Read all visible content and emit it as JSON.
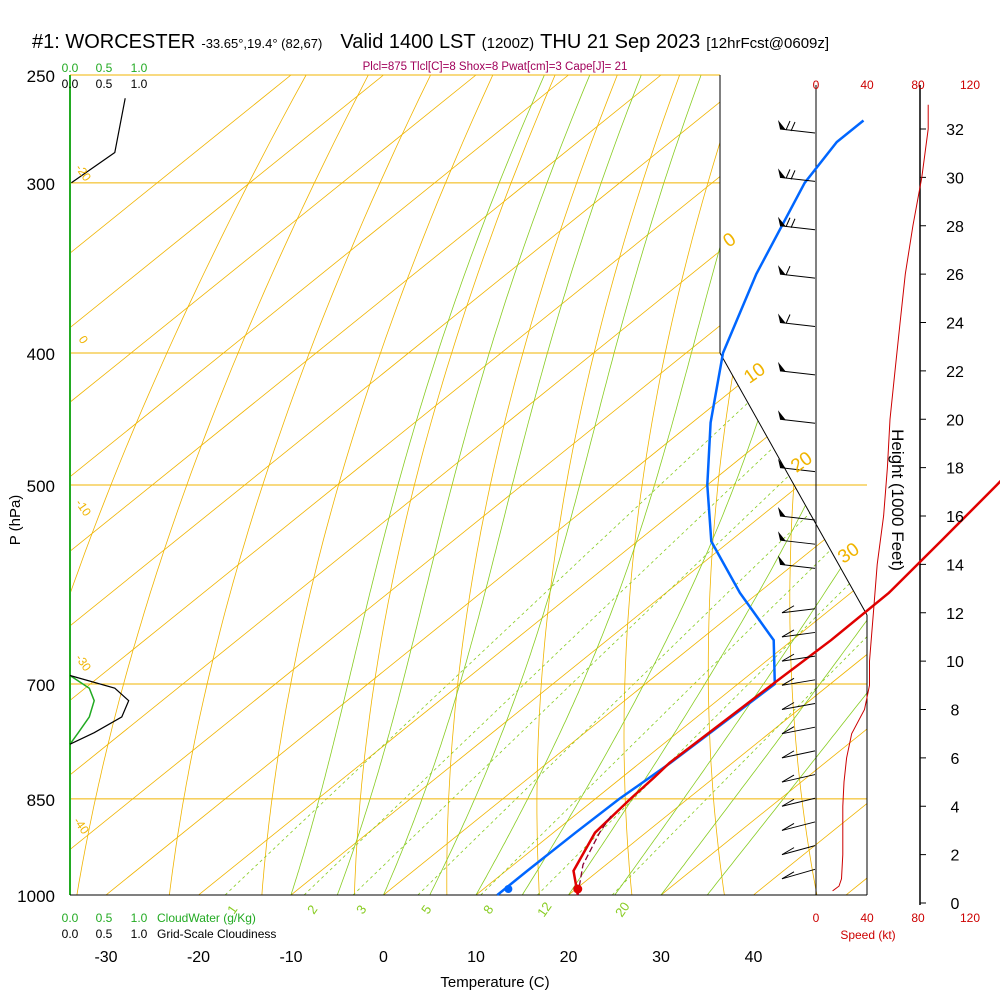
{
  "header": {
    "station": "#1: WORCESTER",
    "coords": "-33.65°,19.4° (82,67)",
    "valid": "Valid 1400 LST",
    "utc": "(1200Z)",
    "date": "THU 21 Sep 2023",
    "forecast": "[12hrFcst@0609z]",
    "indices": "Plcl=875 Tlcl[C]=8 Shox=8 Pwat[cm]=3 Cape[J]= 21"
  },
  "colors": {
    "temperature": "#e00000",
    "dewpoint": "#0066ff",
    "isotherm": "#f0b400",
    "dry_adiabat": "#f0b400",
    "moist_adiabat": "#88cc22",
    "cloud_water": "#22aa22",
    "speed": "#cc0000",
    "title": "#000000",
    "indices": "#a0005a"
  },
  "chart_data": {
    "type": "line",
    "title": "Skew-T Log-P sounding",
    "xlabel": "Temperature (C)",
    "ylabel": "P (hPa)",
    "right_label": "Height (1000 Feet)",
    "temperature_ticks": [
      "-30",
      "-20",
      "-10",
      "0",
      "10",
      "20",
      "30",
      "40"
    ],
    "pressure_ticks": [
      "250",
      "300",
      "400",
      "500",
      "700",
      "850",
      "1000"
    ],
    "height_ticks": [
      "0",
      "2",
      "4",
      "6",
      "8",
      "10",
      "12",
      "14",
      "16",
      "18",
      "20",
      "22",
      "24",
      "26",
      "28",
      "30",
      "32"
    ],
    "speed_ticks": [
      "0",
      "40",
      "80",
      "120"
    ],
    "speed_label": "Speed (kt)",
    "dry_adiabat_labels": [
      "0",
      "10",
      "20",
      "30"
    ],
    "isotherm_labels": [
      "-10",
      "-20",
      "-30",
      "-40",
      "0"
    ],
    "mixing_ratio_labels": [
      "1",
      "2",
      "3",
      "5",
      "8",
      "12",
      "20"
    ],
    "cloud_water_ticks": [
      "0.0",
      "0.5",
      "1.0"
    ],
    "cloudiness_ticks": [
      "0.0",
      "0.5",
      "1.0"
    ],
    "cloud_water_label": "CloudWater (g/Kg)",
    "cloudiness_label": "Grid-Scale Cloudiness",
    "temperature_profile": {
      "pressure": [
        1000,
        960,
        900,
        850,
        820,
        800,
        700,
        650,
        600,
        550,
        500,
        450,
        400,
        350,
        300,
        270
      ],
      "temperature": [
        21.0,
        17.3,
        14.5,
        13.8,
        13.5,
        13.2,
        13.8,
        14.2,
        14.1,
        12.8,
        11.3,
        9.5,
        8.0,
        8.0,
        8.5,
        9.5
      ]
    },
    "dewpoint_profile": {
      "pressure": [
        1000,
        960,
        900,
        850,
        800,
        700,
        650,
        600,
        550,
        500,
        450,
        400,
        350,
        300,
        280,
        270
      ],
      "dewpoint": [
        12.3,
        12.3,
        12.4,
        12.6,
        13.3,
        14.0,
        8.0,
        -2.0,
        -12.0,
        -20.0,
        -28.0,
        -36.0,
        -43.0,
        -50.0,
        -52.0,
        -52.0
      ]
    },
    "parcel_profile": {
      "pressure": [
        1000,
        950,
        900,
        875
      ],
      "temperature": [
        21.0,
        17.5,
        15.0,
        14.0
      ]
    },
    "surface_dewpoint_marker": 13.5,
    "cloud_water_profile": {
      "pressure": [
        690,
        705,
        720,
        740,
        760,
        775
      ],
      "value": [
        0.0,
        0.28,
        0.35,
        0.28,
        0.12,
        0.0
      ]
    },
    "cloudiness_profile": {
      "pressure": [
        690,
        705,
        720,
        740,
        760,
        775
      ],
      "value": [
        0.0,
        0.65,
        0.85,
        0.75,
        0.35,
        0.0
      ]
    },
    "cloudiness_upper": {
      "pressure": [
        260,
        285,
        300
      ],
      "value": [
        0.8,
        0.65,
        0.02
      ]
    },
    "wind_speed_profile": {
      "height_kft": [
        0.5,
        0.7,
        1.0,
        2.0,
        3.0,
        4.0,
        5.0,
        6.0,
        7.0,
        8.0,
        9.0,
        10.0,
        12.0,
        14.0,
        16.0,
        18.0,
        20.0,
        22.0,
        24.0,
        26.0,
        28.0,
        30.0,
        32.0,
        33.0
      ],
      "speed_kt": [
        13,
        18,
        20,
        21,
        21,
        21,
        22,
        24,
        28,
        38,
        42,
        42,
        45,
        48,
        53,
        56,
        58,
        62,
        66,
        70,
        76,
        83,
        88,
        88
      ]
    },
    "wind_barb_heights_kft": [
      1,
      2,
      3,
      4,
      5,
      6,
      7,
      8,
      9,
      10,
      11,
      12,
      14,
      15,
      16,
      18,
      20,
      22,
      24,
      26,
      28,
      30,
      32
    ]
  }
}
